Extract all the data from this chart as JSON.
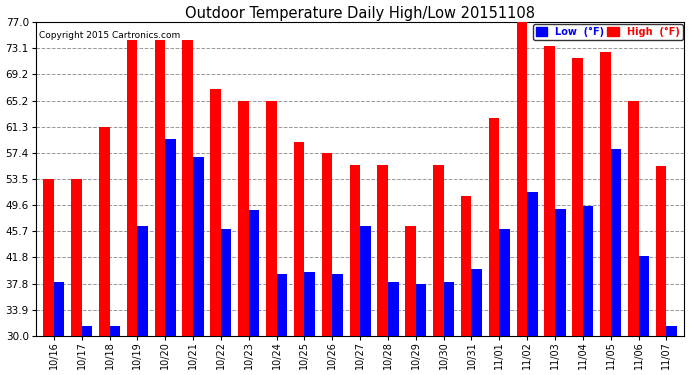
{
  "title": "Outdoor Temperature Daily High/Low 20151108",
  "copyright": "Copyright 2015 Cartronics.com",
  "legend_low": "Low  (°F)",
  "legend_high": "High  (°F)",
  "categories": [
    "10/16",
    "10/17",
    "10/18",
    "10/19",
    "10/20",
    "10/21",
    "10/22",
    "10/23",
    "10/24",
    "10/25",
    "10/26",
    "10/27",
    "10/28",
    "10/29",
    "10/30",
    "10/31",
    "11/01",
    "11/02",
    "11/03",
    "11/04",
    "11/05",
    "11/06",
    "11/07"
  ],
  "high": [
    53.5,
    53.5,
    61.3,
    74.3,
    74.3,
    74.3,
    67.0,
    65.2,
    65.2,
    59.0,
    57.4,
    55.6,
    55.6,
    46.4,
    55.6,
    50.9,
    62.6,
    77.0,
    73.4,
    71.6,
    72.5,
    65.2,
    55.4
  ],
  "low": [
    38.0,
    31.5,
    31.5,
    46.4,
    59.5,
    56.7,
    46.0,
    48.9,
    39.2,
    39.5,
    39.2,
    46.5,
    38.0,
    37.8,
    38.0,
    40.0,
    46.0,
    51.5,
    49.0,
    49.5,
    58.0,
    42.0,
    31.5
  ],
  "ylim_min": 30.0,
  "ylim_max": 77.0,
  "yticks": [
    30.0,
    33.9,
    37.8,
    41.8,
    45.7,
    49.6,
    53.5,
    57.4,
    61.3,
    65.2,
    69.2,
    73.1,
    77.0
  ],
  "bar_width": 0.38,
  "high_color": "#ff0000",
  "low_color": "#0000ff",
  "bg_color": "#ffffff",
  "grid_color": "#999999",
  "title_color": "#000000",
  "copyright_color": "#000000",
  "figwidth": 6.9,
  "figheight": 3.75,
  "dpi": 100
}
